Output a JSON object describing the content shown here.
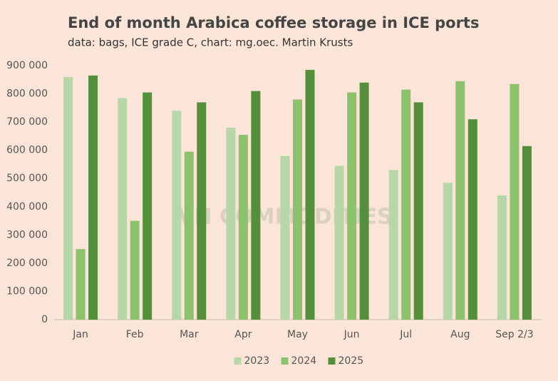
{
  "chart_data": {
    "type": "bar",
    "title": "End of month Arabica coffee storage in ICE ports",
    "subtitle": "data: bags, ICE grade C, chart: mg.oec. Martin Krusts",
    "watermark": "VN COMMODITIES",
    "categories": [
      "Jan",
      "Feb",
      "Mar",
      "Apr",
      "May",
      "Jun",
      "Jul",
      "Aug",
      "Sep 2/3"
    ],
    "series": [
      {
        "name": "2023",
        "color": "#b7d7a8",
        "values": [
          860000,
          785000,
          740000,
          680000,
          580000,
          545000,
          530000,
          485000,
          440000
        ]
      },
      {
        "name": "2024",
        "color": "#8dc26d",
        "values": [
          250000,
          350000,
          595000,
          655000,
          780000,
          805000,
          815000,
          845000,
          835000
        ]
      },
      {
        "name": "2025",
        "color": "#558f3b",
        "values": [
          865000,
          805000,
          770000,
          810000,
          885000,
          840000,
          770000,
          710000,
          615000
        ]
      }
    ],
    "ylim": [
      0,
      900000
    ],
    "yticks": [
      {
        "value": 0,
        "label": "0"
      },
      {
        "value": 100000,
        "label": "100 000"
      },
      {
        "value": 200000,
        "label": "200 000"
      },
      {
        "value": 300000,
        "label": "300 000"
      },
      {
        "value": 400000,
        "label": "400 000"
      },
      {
        "value": 500000,
        "label": "500 000"
      },
      {
        "value": 600000,
        "label": "600 000"
      },
      {
        "value": 700000,
        "label": "700 000"
      },
      {
        "value": 800000,
        "label": "800 000"
      },
      {
        "value": 900000,
        "label": "900 000"
      }
    ],
    "grid": false,
    "legend": "bottom"
  }
}
